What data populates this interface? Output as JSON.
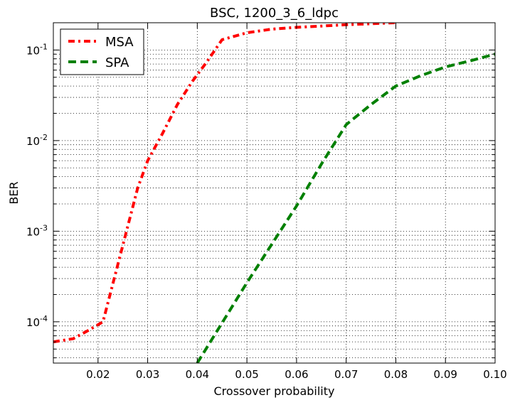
{
  "chart_data": {
    "type": "line",
    "title": "BSC, 1200_3_6_ldpc",
    "xlabel": "Crossover probability",
    "ylabel": "BER",
    "xlim": [
      0.011,
      0.1
    ],
    "ylim": [
      3.5e-05,
      0.2
    ],
    "yscale": "log",
    "grid": true,
    "legend": "top-left",
    "x_ticks": [
      "0.02",
      "0.03",
      "0.04",
      "0.05",
      "0.06",
      "0.07",
      "0.08",
      "0.09",
      "0.10"
    ],
    "y_ticks": [
      {
        "base": "10",
        "exp": "-4",
        "value": 0.0001
      },
      {
        "base": "10",
        "exp": "-3",
        "value": 0.001
      },
      {
        "base": "10",
        "exp": "-2",
        "value": 0.01
      },
      {
        "base": "10",
        "exp": "-1",
        "value": 0.1
      }
    ],
    "series": [
      {
        "name": "MSA",
        "color": "#ff0000",
        "style": "dashdot",
        "x": [
          0.011,
          0.015,
          0.018,
          0.021,
          0.025,
          0.028,
          0.03,
          0.033,
          0.036,
          0.039,
          0.042,
          0.045,
          0.05,
          0.055,
          0.06,
          0.07,
          0.08
        ],
        "y": [
          6e-05,
          6.5e-05,
          8e-05,
          0.0001,
          0.0007,
          0.003,
          0.006,
          0.012,
          0.025,
          0.045,
          0.075,
          0.13,
          0.155,
          0.17,
          0.178,
          0.19,
          0.2
        ]
      },
      {
        "name": "SPA",
        "color": "#008000",
        "style": "dashed",
        "x": [
          0.04,
          0.05,
          0.06,
          0.065,
          0.07,
          0.075,
          0.08,
          0.085,
          0.09,
          0.095,
          0.1
        ],
        "y": [
          3.5e-05,
          0.00027,
          0.0019,
          0.0055,
          0.015,
          0.025,
          0.04,
          0.052,
          0.065,
          0.076,
          0.09
        ]
      }
    ]
  }
}
